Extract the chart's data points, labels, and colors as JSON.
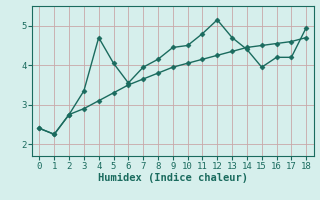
{
  "x": [
    0,
    1,
    2,
    3,
    4,
    5,
    6,
    7,
    8,
    9,
    10,
    11,
    12,
    13,
    14,
    15,
    16,
    17,
    18
  ],
  "y_jagged": [
    2.4,
    2.25,
    2.75,
    3.35,
    4.7,
    4.05,
    3.55,
    3.95,
    4.15,
    4.45,
    4.5,
    4.8,
    5.15,
    4.7,
    4.4,
    3.95,
    4.2,
    4.2,
    4.95
  ],
  "y_trend": [
    2.4,
    2.25,
    2.75,
    2.9,
    3.1,
    3.3,
    3.5,
    3.65,
    3.8,
    3.95,
    4.05,
    4.15,
    4.25,
    4.35,
    4.45,
    4.5,
    4.55,
    4.6,
    4.7
  ],
  "line_color": "#1a6b5e",
  "bg_color": "#d6efec",
  "grid_color": "#c8a8a8",
  "axis_color": "#1a6b5e",
  "xlabel": "Humidex (Indice chaleur)",
  "ylim": [
    1.7,
    5.5
  ],
  "xlim": [
    -0.5,
    18.5
  ],
  "xticks": [
    0,
    1,
    2,
    3,
    4,
    5,
    6,
    7,
    8,
    9,
    10,
    11,
    12,
    13,
    14,
    15,
    16,
    17,
    18
  ],
  "yticks": [
    2,
    3,
    4,
    5
  ],
  "marker": "D",
  "markersize": 2.5,
  "linewidth": 1.0,
  "tick_labelsize": 6.5,
  "xlabel_fontsize": 7.5
}
